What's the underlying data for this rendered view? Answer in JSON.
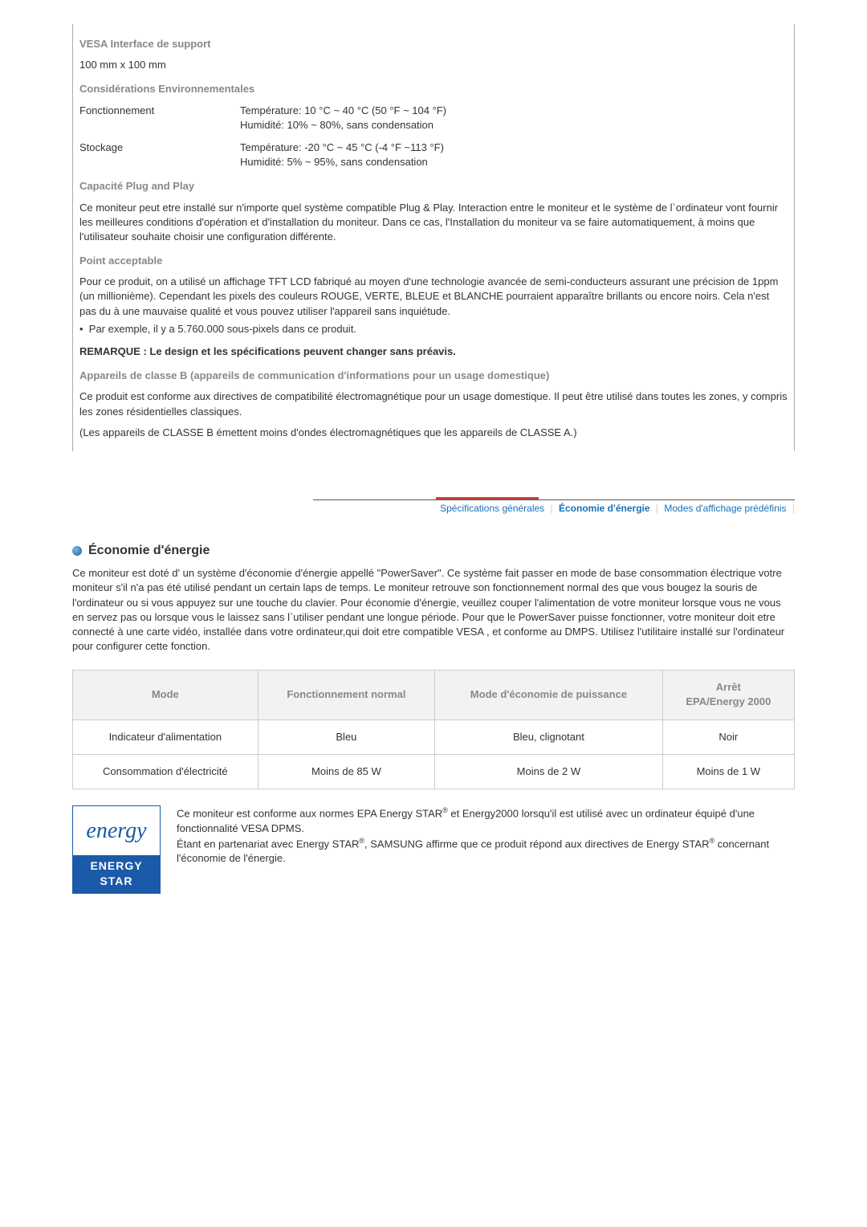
{
  "spec": {
    "vesa_heading": "VESA Interface de support",
    "vesa_value": "100 mm x 100 mm",
    "env_heading": "Considérations Environnementales",
    "env_rows": [
      {
        "label": "Fonctionnement",
        "line1": "Température: 10 °C ~ 40 °C (50 °F ~ 104 °F)",
        "line2": "Humidité: 10% ~ 80%, sans condensation"
      },
      {
        "label": "Stockage",
        "line1": "Température: -20 °C ~ 45 °C (-4 °F ~113 °F)",
        "line2": "Humidité: 5% ~ 95%, sans condensation"
      }
    ],
    "plug_heading": "Capacité Plug and Play",
    "plug_para": "Ce moniteur peut etre installé sur n'importe quel système compatible Plug & Play. Interaction entre le moniteur et le système de l`ordinateur vont fournir les meilleures conditions d'opération et d'installation du moniteur. Dans ce cas, l'Installation du moniteur va se faire automatiquement, à moins que l'utilisateur souhaite choisir une configuration différente.",
    "point_heading": "Point acceptable",
    "point_para": "Pour ce produit, on a utilisé un affichage TFT LCD fabriqué au moyen d'une technologie avancée de semi-conducteurs assurant une précision de 1ppm (un millionième). Cependant les pixels des couleurs ROUGE, VERTE, BLEUE et BLANCHE pourraient apparaître brillants ou encore noirs. Cela n'est pas du à une mauvaise qualité et vous pouvez utiliser l'appareil sans inquiétude.",
    "point_bullet": "Par exemple, il y a 5.760.000 sous-pixels dans ce produit.",
    "remark": "REMARQUE : Le design et les spécifications peuvent changer sans préavis.",
    "classeB_heading": "Appareils de classe B (appareils de communication d'informations pour un usage domestique)",
    "classeB_para": "Ce produit est conforme aux directives de compatibilité électromagnétique pour un usage domestique. Il peut être utilisé dans toutes les zones, y compris les zones résidentielles classiques.",
    "classeA_para": "(Les appareils de CLASSE B émettent moins d'ondes électromagnétiques que les appareils de CLASSE A.)"
  },
  "tabs": {
    "t1": "Spécifications générales",
    "t2": "Économie d'énergie",
    "t3": "Modes d'affichage prédéfinis"
  },
  "energy": {
    "title": "Économie d'énergie",
    "intro": "Ce moniteur est doté d' un système d'économie d'énergie appellé \"PowerSaver\". Ce système fait passer en mode de base consommation électrique votre moniteur s'il n'a pas été utilisé pendant un certain laps de temps. Le moniteur retrouve son fonctionnement normal des que vous bougez la souris de l'ordinateur ou si vous appuyez sur une touche du clavier. Pour économie d'énergie, veuillez couper l'alimentation de votre moniteur lorsque vous ne vous en servez pas ou lorsque vous le laissez sans l`utiliser pendant une longue période. Pour que le PowerSaver puisse fonctionner, votre moniteur doit etre connecté à une carte vidéo, installée dans votre ordinateur,qui doit etre compatible VESA , et conforme au DMPS. Utilisez l'utilitaire installé sur l'ordinateur pour configurer cette fonction.",
    "table": {
      "headers": {
        "c0": "Mode",
        "c1": "Fonctionnement normal",
        "c2": "Mode d'économie de puissance",
        "c3": "Arrêt\nEPA/Energy 2000"
      },
      "rows": [
        {
          "c0": "Indicateur d'alimentation",
          "c1": "Bleu",
          "c2": "Bleu, clignotant",
          "c3": "Noir"
        },
        {
          "c0": "Consommation d'électricité",
          "c1": "Moins de 85 W",
          "c2": "Moins de 2 W",
          "c3": "Moins de 1 W"
        }
      ]
    },
    "logo_top": "energy",
    "logo_bottom": "ENERGY STAR",
    "compliance_1a": "Ce moniteur est conforme aux normes EPA Energy STAR",
    "compliance_1b": " et Energy2000 lorsqu'il est utilisé avec un ordinateur équipé d'une fonctionnalité VESA DPMS.",
    "compliance_2a": "Étant en partenariat avec Energy STAR",
    "compliance_2b": ", SAMSUNG affirme que ce produit répond aux directives de Energy STAR",
    "compliance_2c": " concernant l'économie de l'énergie."
  },
  "colors": {
    "heading_gray": "#888888",
    "text": "#333333",
    "tab_blue": "#1671b9",
    "tab_active_red": "#c9423a",
    "energy_blue": "#1a5aa8"
  }
}
